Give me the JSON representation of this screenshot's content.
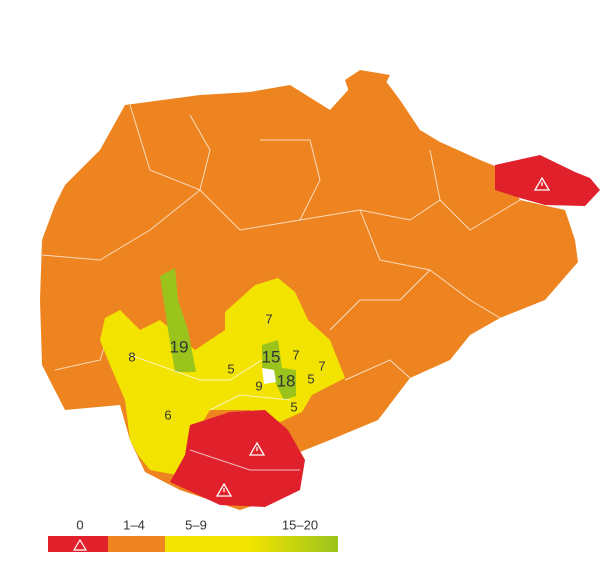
{
  "regions": [
    {
      "label": "7"
    },
    {
      "label": "19"
    },
    {
      "label": "8"
    },
    {
      "label": "15"
    },
    {
      "label": "7"
    },
    {
      "label": "7"
    },
    {
      "label": "5"
    },
    {
      "label": "18"
    },
    {
      "label": "5"
    },
    {
      "label": "9"
    },
    {
      "label": "5"
    },
    {
      "label": "6"
    }
  ],
  "legend": {
    "items": [
      {
        "label": "0",
        "color": "#e0202a"
      },
      {
        "label": "1–4",
        "color": "#ee8420"
      },
      {
        "label": "5–9",
        "color": "#f2e400"
      },
      {
        "label": "15–20",
        "color": "#9ac31c"
      }
    ]
  }
}
